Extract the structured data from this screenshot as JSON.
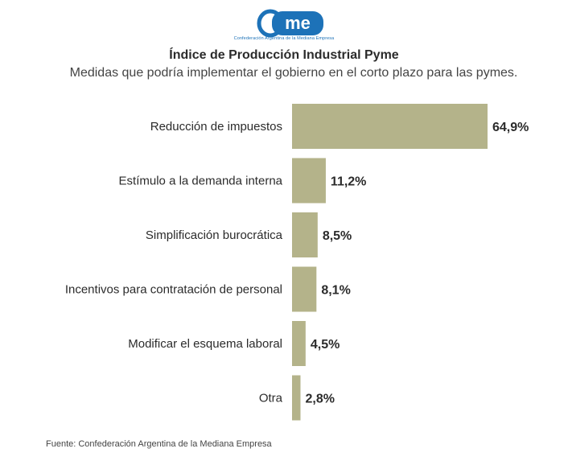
{
  "header": {
    "logo_text": "came",
    "logo_subtext": "Confederación Argentina de la Mediana Empresa",
    "title": "Índice de Producción Industrial Pyme",
    "subtitle": "Medidas que podría implementar el gobierno en el corto plazo para las pymes."
  },
  "footer": {
    "source": "Fuente: Confederación Argentina de la Mediana Empresa"
  },
  "colors": {
    "bar": "#b4b38a",
    "brand": "#1d72b8",
    "text": "#2b2b2b"
  },
  "chart_data": {
    "type": "bar",
    "orientation": "horizontal",
    "title": "Índice de Producción Industrial Pyme",
    "subtitle": "Medidas que podría implementar el gobierno en el corto plazo para las pymes.",
    "categories": [
      "Reducción de impuestos",
      "Estímulo a la demanda interna",
      "Simplificación burocrática",
      "Incentivos para contratación de personal",
      "Modificar el esquema laboral",
      "Otra"
    ],
    "values": [
      64.9,
      11.2,
      8.5,
      8.1,
      4.5,
      2.8
    ],
    "value_labels": [
      "64,9%",
      "11,2%",
      "8,5%",
      "8,1%",
      "4,5%",
      "2,8%"
    ],
    "xlim": [
      0,
      64.9
    ],
    "grid": false,
    "legend": "none"
  }
}
